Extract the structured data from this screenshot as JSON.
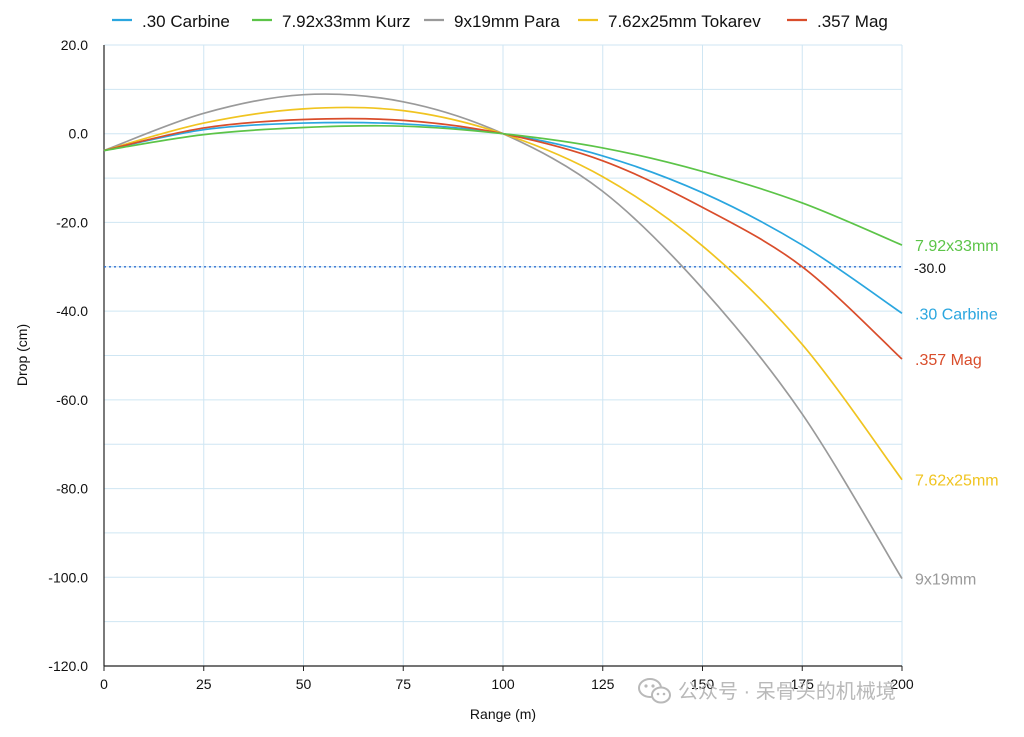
{
  "chart_data": {
    "type": "line",
    "title": "",
    "xlabel": "Range (m)",
    "ylabel": "Drop (cm)",
    "xlim": [
      0,
      200
    ],
    "ylim": [
      -120,
      20
    ],
    "x_ticks": [
      0,
      25,
      50,
      75,
      100,
      125,
      150,
      175,
      200
    ],
    "y_ticks": [
      "20.0",
      "0.0",
      "-20.0",
      "-40.0",
      "-60.0",
      "-80.0",
      "-100.0",
      "-120.0"
    ],
    "grid": true,
    "legend_position": "top",
    "x": [
      0,
      25,
      50,
      75,
      100,
      125,
      150,
      175,
      200
    ],
    "series": [
      {
        "name": ".30 Carbine",
        "end_label": ".30 Carbine",
        "color": "#2aa6df",
        "values": [
          -3.8,
          0.9,
          2.4,
          2.2,
          0.0,
          -5.0,
          -13.3,
          -25.1,
          -40.5
        ]
      },
      {
        "name": "7.92x33mm Kurz",
        "end_label": "7.92x33mm",
        "color": "#5cc448",
        "values": [
          -3.8,
          -0.2,
          1.4,
          1.7,
          0.0,
          -3.2,
          -8.5,
          -15.6,
          -25.1
        ]
      },
      {
        "name": "9x19mm Para",
        "end_label": "9x19mm",
        "color": "#9a9a9a",
        "values": [
          -3.8,
          4.6,
          8.8,
          7.2,
          0.0,
          -13.0,
          -34.9,
          -63.2,
          -100.3
        ]
      },
      {
        "name": "7.62x25mm Tokarev",
        "end_label": "7.62x25mm",
        "color": "#f0c420",
        "values": [
          -3.8,
          2.4,
          5.6,
          5.2,
          0.0,
          -9.7,
          -25.3,
          -47.5,
          -78.0
        ]
      },
      {
        "name": ".357 Mag",
        "end_label": ".357 Mag",
        "color": "#d94d2b",
        "values": [
          -3.8,
          1.3,
          3.2,
          3.0,
          0.0,
          -6.1,
          -16.6,
          -30.0,
          -50.8
        ]
      }
    ],
    "reference_line": {
      "value": -30.0,
      "label": "-30.0",
      "color": "#2f6fd0",
      "style": "dotted"
    }
  },
  "watermark": {
    "text": "公众号 · 呆骨头的机械境",
    "icon": "wechat-icon"
  }
}
